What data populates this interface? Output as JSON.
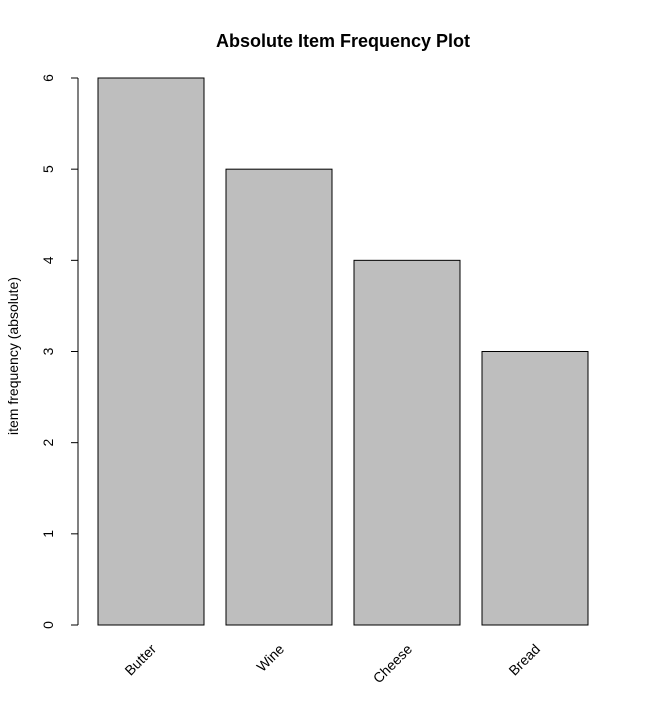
{
  "chart_data": {
    "type": "bar",
    "title": "Absolute Item Frequency Plot",
    "xlabel": "",
    "ylabel": "item frequency (absolute)",
    "categories": [
      "Butter",
      "Wine",
      "Cheese",
      "Bread"
    ],
    "values": [
      6,
      5,
      4,
      3
    ],
    "yticks": [
      "0",
      "1",
      "2",
      "3",
      "4",
      "5",
      "6"
    ],
    "ylim": [
      0,
      6
    ],
    "grid": false,
    "bar_color": "#bebebe",
    "bar_edge_color": "#000000"
  }
}
